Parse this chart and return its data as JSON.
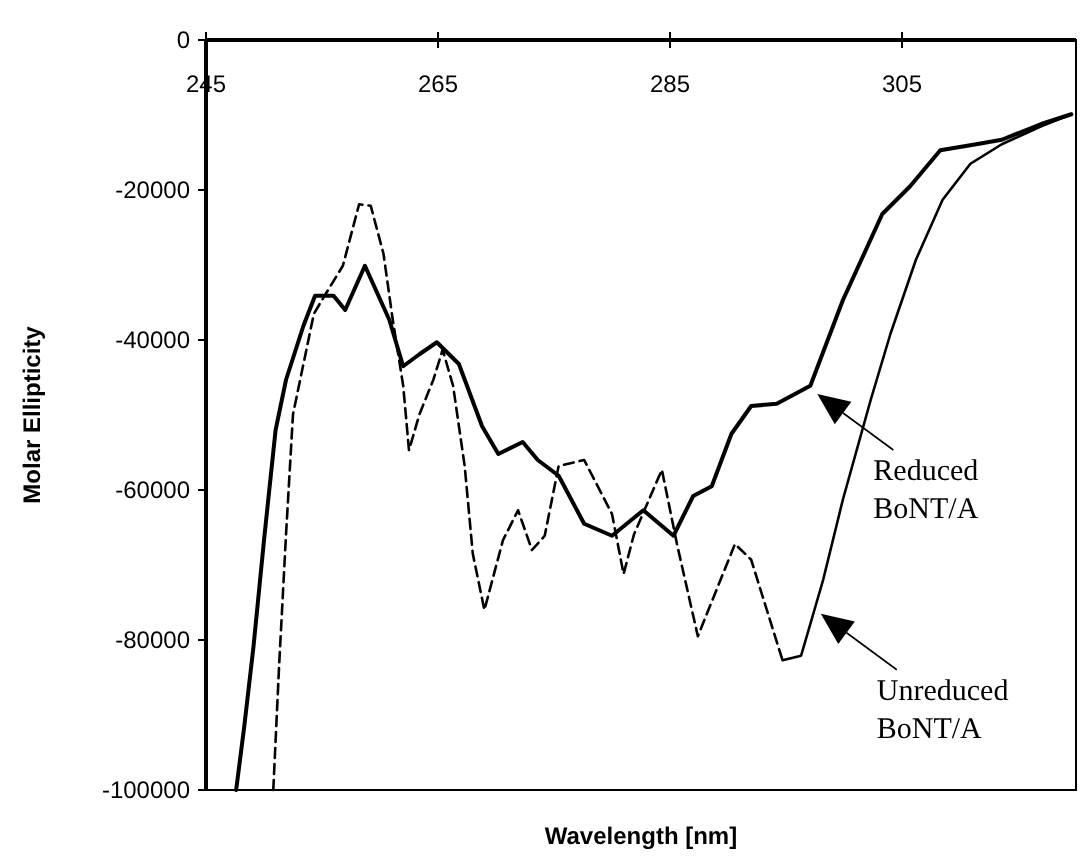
{
  "chart_data": {
    "type": "line",
    "xlabel": "Wavelength [nm]",
    "ylabel": "Molar Ellipticity",
    "xlim": [
      245,
      320
    ],
    "xticks": [
      245,
      265,
      285,
      305
    ],
    "ylim": [
      -100000,
      0
    ],
    "yticks": [
      0,
      -20000,
      -40000,
      -60000,
      -80000,
      -100000
    ],
    "grid": false,
    "series": [
      {
        "color": "#000000",
        "line_style": "solid",
        "x": [
          247.6,
          248.3,
          249.1,
          250.0,
          251.0,
          251.9,
          253.4,
          254.4,
          256.0,
          257.0,
          258.7,
          260.8,
          262.0,
          263.4,
          264.9,
          266.8,
          268.8,
          270.2,
          272.3,
          273.6,
          275.4,
          277.6,
          280.0,
          282.7,
          285.3,
          287.0,
          288.6,
          290.3,
          292.0,
          294.2,
          297.1,
          299.9,
          303.3,
          305.7,
          308.3,
          311.4,
          313.6,
          317.0,
          319.6
        ],
        "values": [
          -100000,
          -91500,
          -80800,
          -66700,
          -52000,
          -45300,
          -38100,
          -34100,
          -34100,
          -36000,
          -30100,
          -37300,
          -43500,
          -41900,
          -40300,
          -43200,
          -51500,
          -55200,
          -53600,
          -56000,
          -58100,
          -64500,
          -66100,
          -62700,
          -66100,
          -60800,
          -59500,
          -52500,
          -48800,
          -48500,
          -46100,
          -34700,
          -23200,
          -19500,
          -14700,
          -13900,
          -13300,
          -11200,
          -9900
        ]
      },
      {
        "color": "#000000",
        "line_style": "dashed",
        "x": [
          250.8,
          251.3,
          251.9,
          252.5,
          254.3,
          255.3,
          256.8,
          258.2,
          259.2,
          260.3,
          261.1,
          262.0,
          262.5,
          263.4,
          264.6,
          265.4,
          266.3,
          267.3,
          268.0,
          269.0,
          270.6,
          271.9,
          273.1,
          274.2,
          275.4,
          277.6,
          280.0,
          281.0,
          281.9,
          284.3,
          285.6,
          287.4,
          290.6,
          292.0,
          294.7
        ],
        "values": [
          -100000,
          -83500,
          -65900,
          -49900,
          -36500,
          -33900,
          -30100,
          -21900,
          -22100,
          -28500,
          -37300,
          -46100,
          -54700,
          -49900,
          -45300,
          -41300,
          -46100,
          -56800,
          -68500,
          -76000,
          -66700,
          -62700,
          -68000,
          -66100,
          -56800,
          -56000,
          -63200,
          -71200,
          -65900,
          -57300,
          -67200,
          -79500,
          -67200,
          -69300,
          -82700
        ]
      },
      {
        "color": "#000000",
        "line_style": "solid",
        "x": [
          294.7,
          296.3,
          298.2,
          299.9,
          302.3,
          304.0,
          306.2,
          308.5,
          310.9,
          313.6,
          317.0,
          319.6
        ],
        "values": [
          -82700,
          -82100,
          -72000,
          -61300,
          -48000,
          -39200,
          -29300,
          -21300,
          -16500,
          -13900,
          -11500,
          -9900
        ]
      }
    ],
    "annotations": [
      {
        "text": "Reduced\nBoNT/A",
        "x": 297.7,
        "y": -47200
      },
      {
        "text": "Unreduced\nBoNT/A",
        "x": 298,
        "y": -76500
      }
    ]
  }
}
